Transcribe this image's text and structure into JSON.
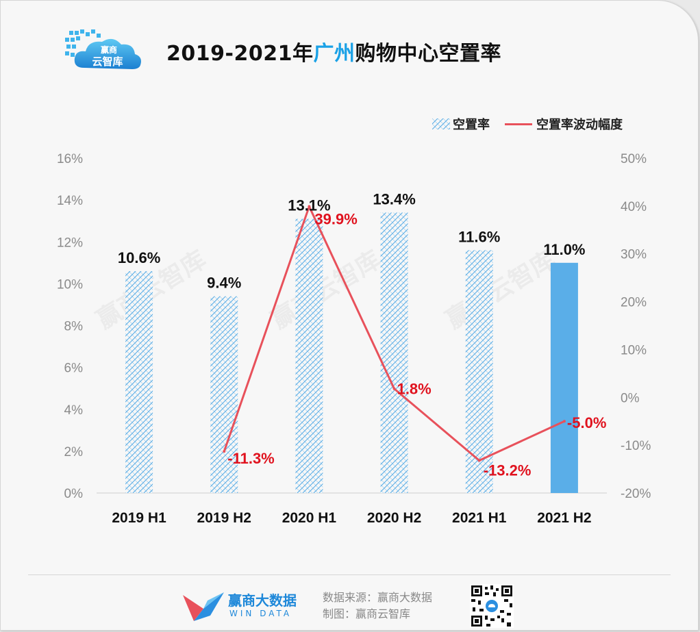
{
  "header": {
    "title_prefix": "2019-2021年",
    "title_highlight": "广州",
    "title_suffix": "购物中心空置率",
    "logo_text_top": "赢商",
    "logo_text_bottom": "云智库"
  },
  "legend": {
    "bar_label": "空置率",
    "line_label": "空置率波动幅度"
  },
  "colors": {
    "bar_pattern": "#5aaee8",
    "bar_solid": "#5aaee8",
    "line": "#e8515b",
    "line_label": "#e0121e",
    "accent": "#1aa1e6"
  },
  "chart_data": {
    "type": "bar",
    "title": "2019-2021年广州购物中心空置率",
    "categories": [
      "2019 H1",
      "2019 H2",
      "2020 H1",
      "2020 H2",
      "2021 H1",
      "2021 H2"
    ],
    "series": [
      {
        "name": "空置率",
        "type": "bar",
        "axis": "left",
        "values": [
          10.6,
          9.4,
          13.1,
          13.4,
          11.6,
          11.0
        ],
        "labels": [
          "10.6%",
          "9.4%",
          "13.1%",
          "13.4%",
          "11.6%",
          "11.0%"
        ]
      },
      {
        "name": "空置率波动幅度",
        "type": "line",
        "axis": "right",
        "x": [
          "2019 H2",
          "2020 H1",
          "2020 H2",
          "2021 H1",
          "2021 H2"
        ],
        "values": [
          -11.3,
          39.9,
          1.8,
          -13.2,
          -5.0
        ],
        "labels": [
          "-11.3%",
          "39.9%",
          "1.8%",
          "-13.2%",
          "-5.0%"
        ]
      }
    ],
    "y_left": {
      "min": 0,
      "max": 16,
      "ticks": [
        "0%",
        "2%",
        "4%",
        "6%",
        "8%",
        "10%",
        "12%",
        "14%",
        "16%"
      ]
    },
    "y_right": {
      "min": -20,
      "max": 50,
      "ticks": [
        "-20%",
        "-10%",
        "0%",
        "10%",
        "20%",
        "30%",
        "40%",
        "50%"
      ]
    },
    "grid": false,
    "legend_position": "top-right"
  },
  "watermark": "赢商云智库",
  "footer": {
    "brand_cn": "赢商大数据",
    "brand_en": "WIN DATA",
    "source_line": "数据来源：赢商大数据",
    "made_line": "制图：赢商云智库"
  }
}
